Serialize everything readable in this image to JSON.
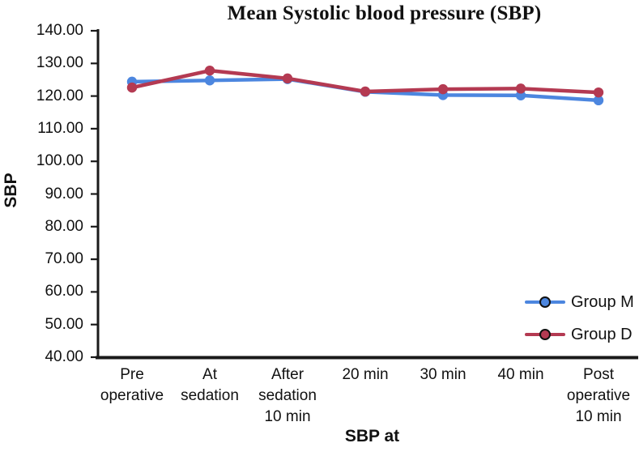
{
  "chart_data": {
    "type": "line",
    "title": "Mean Systolic blood pressure (SBP)",
    "xlabel": "SBP at",
    "ylabel": "SBP",
    "categories": [
      "Pre operative",
      "At sedation",
      "After sedation 10 min",
      "20 min",
      "30 min",
      "40 min",
      "Post operative 10 min"
    ],
    "xtick_lines": [
      [
        "Pre",
        "operative"
      ],
      [
        "At",
        "sedation"
      ],
      [
        "After",
        "sedation",
        "10 min"
      ],
      [
        "20 min"
      ],
      [
        "30 min"
      ],
      [
        "40 min"
      ],
      [
        "Post",
        "operative",
        "10 min"
      ]
    ],
    "yticks": [
      "140.00",
      "130.00",
      "120.00",
      "110.00",
      "100.00",
      "90.00",
      "80.00",
      "70.00",
      "60.00",
      "50.00",
      "40.00"
    ],
    "ylim": [
      40,
      140
    ],
    "ytick_step": 10,
    "grid": false,
    "legend_position": "right-lower",
    "axis_color": "#1a1a1a",
    "series": [
      {
        "name": "Group M",
        "color": "#4C86DF",
        "marker": "circle",
        "values": [
          124.4,
          124.8,
          125.2,
          121.3,
          120.3,
          120.2,
          118.7
        ]
      },
      {
        "name": "Group D",
        "color": "#B43A52",
        "marker": "circle",
        "values": [
          122.6,
          127.8,
          125.4,
          121.4,
          122.1,
          122.3,
          121.1
        ]
      }
    ]
  }
}
